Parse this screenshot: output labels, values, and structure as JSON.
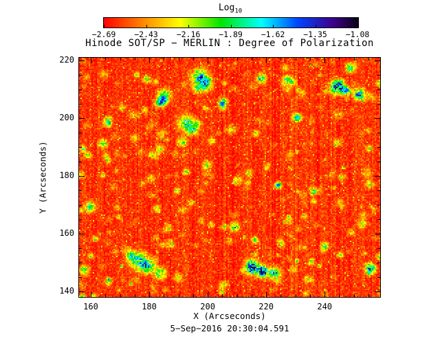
{
  "chart_data": {
    "type": "heatmap",
    "title": "Hinode SOT/SP − MERLIN : Degree of Polarization",
    "xlabel": "X (Arcseconds)",
    "ylabel": "Y (Arcseconds)",
    "timestamp": "5−Sep−2016 20:30:04.591",
    "x_range": [
      156,
      259
    ],
    "y_range": [
      138,
      221
    ],
    "x_ticks": [
      160,
      180,
      200,
      220,
      240
    ],
    "y_ticks": [
      140,
      160,
      180,
      200,
      220
    ],
    "minor_tick_step": 5,
    "axis_color": "#000000",
    "colorbar": {
      "label_main": "Log",
      "label_sub": "10",
      "range": [
        -2.69,
        -1.08
      ],
      "ticks": [
        -2.69,
        -2.43,
        -2.16,
        -1.89,
        -1.62,
        -1.35,
        -1.08
      ],
      "tick_labels": [
        "−2.69",
        "−2.43",
        "−2.16",
        "−1.89",
        "−1.62",
        "−1.35",
        "−1.08"
      ],
      "colormap": [
        [
          0.0,
          "#ff0000"
        ],
        [
          0.16,
          "#ff8c00"
        ],
        [
          0.3,
          "#ffff00"
        ],
        [
          0.46,
          "#00e600"
        ],
        [
          0.62,
          "#00ffff"
        ],
        [
          0.76,
          "#0046ff"
        ],
        [
          0.9,
          "#3c008c"
        ],
        [
          1.0,
          "#0a0014"
        ]
      ]
    },
    "background_level_log10": -2.6,
    "features": [
      {
        "x": 197.0,
        "y": 214.5,
        "r": 1.8,
        "a": 0.6
      },
      {
        "x": 199.0,
        "y": 212.0,
        "r": 1.4,
        "a": 0.55
      },
      {
        "x": 196.0,
        "y": 210.5,
        "r": 1.0,
        "a": 0.45
      },
      {
        "x": 185.0,
        "y": 208.0,
        "r": 1.5,
        "a": 0.55
      },
      {
        "x": 183.0,
        "y": 205.5,
        "r": 1.0,
        "a": 0.4
      },
      {
        "x": 244.0,
        "y": 211.0,
        "r": 1.6,
        "a": 0.75
      },
      {
        "x": 247.5,
        "y": 209.5,
        "r": 1.0,
        "a": 0.5
      },
      {
        "x": 251.5,
        "y": 208.5,
        "r": 1.2,
        "a": 0.7
      },
      {
        "x": 218.0,
        "y": 214.0,
        "r": 1.1,
        "a": 0.5
      },
      {
        "x": 192.5,
        "y": 198.5,
        "r": 1.7,
        "a": 0.55
      },
      {
        "x": 194.5,
        "y": 196.0,
        "r": 1.2,
        "a": 0.45
      },
      {
        "x": 191.0,
        "y": 192.0,
        "r": 1.0,
        "a": 0.42
      },
      {
        "x": 176.5,
        "y": 150.5,
        "r": 2.0,
        "a": 0.62
      },
      {
        "x": 179.5,
        "y": 148.5,
        "r": 1.4,
        "a": 0.5
      },
      {
        "x": 173.5,
        "y": 152.5,
        "r": 1.2,
        "a": 0.45
      },
      {
        "x": 183.5,
        "y": 146.5,
        "r": 1.3,
        "a": 0.55
      },
      {
        "x": 215.0,
        "y": 148.5,
        "r": 1.6,
        "a": 0.8
      },
      {
        "x": 218.5,
        "y": 147.0,
        "r": 1.2,
        "a": 0.95
      },
      {
        "x": 222.5,
        "y": 146.5,
        "r": 1.3,
        "a": 0.62
      },
      {
        "x": 209.0,
        "y": 162.5,
        "r": 1.1,
        "a": 0.5
      },
      {
        "x": 159.5,
        "y": 169.5,
        "r": 1.2,
        "a": 0.5
      },
      {
        "x": 164.0,
        "y": 191.5,
        "r": 1.0,
        "a": 0.45
      },
      {
        "x": 230.0,
        "y": 200.5,
        "r": 0.9,
        "a": 0.45
      },
      {
        "x": 255.5,
        "y": 148.0,
        "r": 1.1,
        "a": 0.7
      },
      {
        "x": 157.5,
        "y": 147.5,
        "r": 1.0,
        "a": 0.5
      },
      {
        "x": 199.5,
        "y": 184.0,
        "r": 0.9,
        "a": 0.4
      },
      {
        "x": 236.0,
        "y": 175.0,
        "r": 0.9,
        "a": 0.42
      },
      {
        "x": 205.0,
        "y": 206.0,
        "r": 1.0,
        "a": 0.45
      },
      {
        "x": 227.0,
        "y": 213.5,
        "r": 1.0,
        "a": 0.48
      },
      {
        "x": 240.0,
        "y": 156.0,
        "r": 0.9,
        "a": 0.4
      }
    ],
    "render": {
      "seed": 20160905,
      "specks": 300,
      "speckle_prob": 0.02
    }
  }
}
